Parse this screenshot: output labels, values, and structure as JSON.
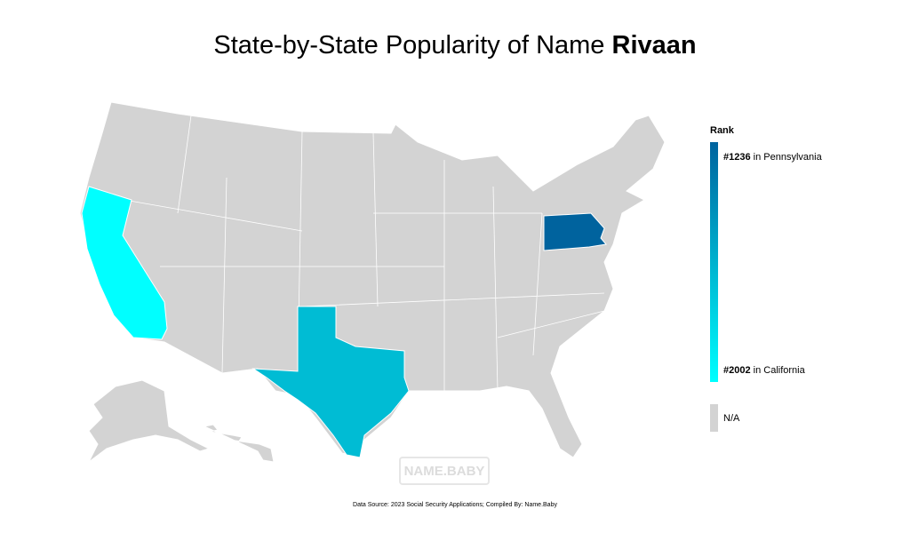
{
  "title": {
    "text": "State-by-State Popularity of Name",
    "name": "Rivaan"
  },
  "legend": {
    "title": "Rank",
    "top": {
      "rank": "#1236",
      "state": "in Pennsylvania"
    },
    "bottom": {
      "rank": "#2002",
      "state": "in California"
    },
    "na": "N/A",
    "colors": [
      "#00639e",
      "#00ffff"
    ],
    "na_color": "#d3d3d3"
  },
  "map": {
    "base_color": "#d3d3d3",
    "fills": [
      "#00ffff",
      "#00bcd4",
      "#00639e"
    ]
  },
  "watermark": "NAME.BABY",
  "source": "Data Source: 2023 Social Security Applications; Compiled By: Name.Baby"
}
